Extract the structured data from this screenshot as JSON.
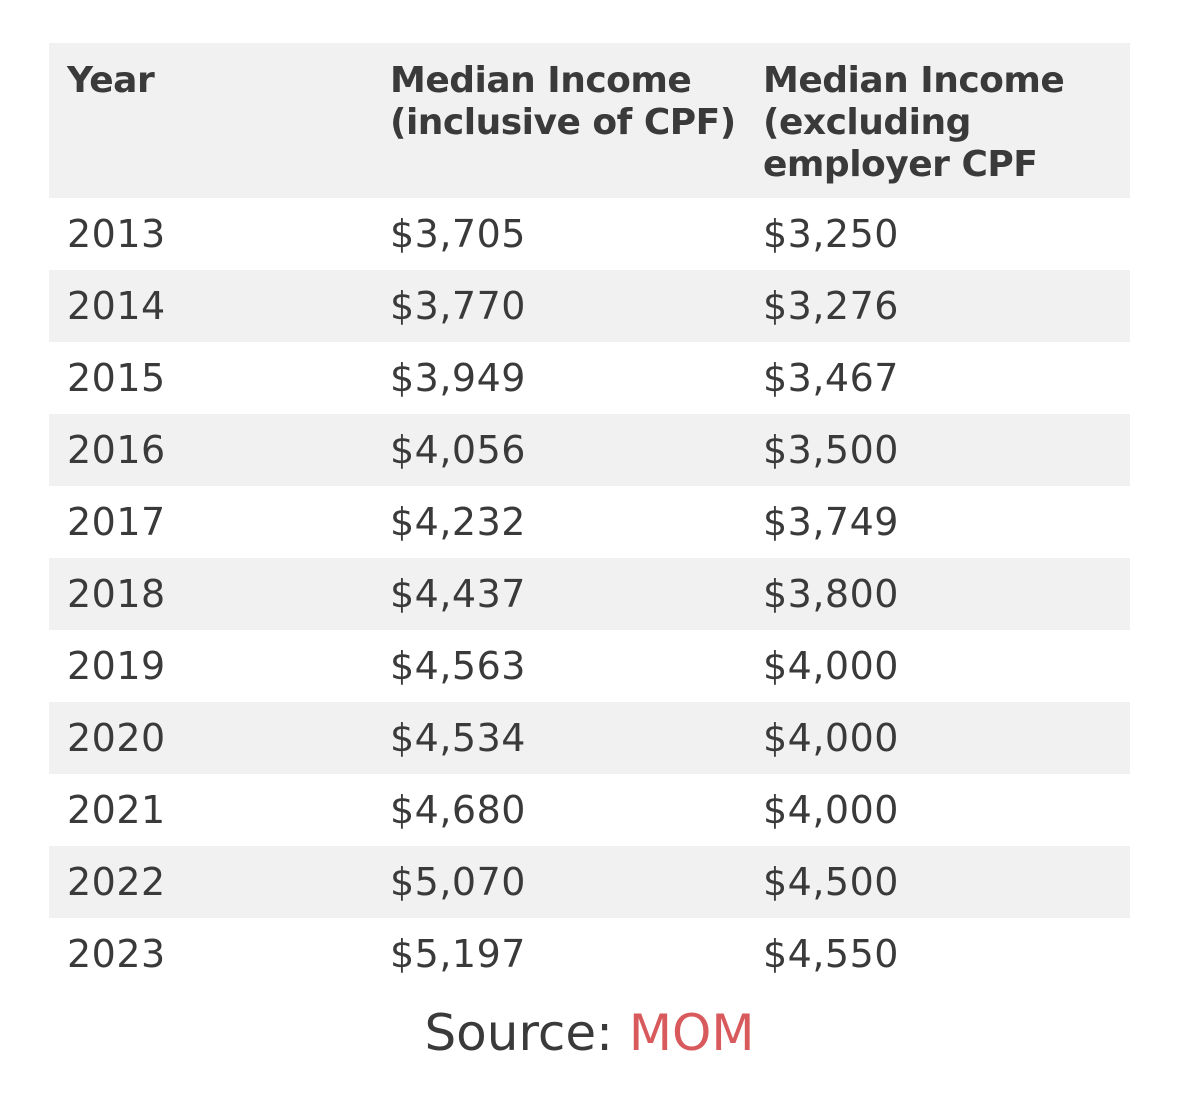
{
  "table": {
    "headers": [
      "Year",
      "Median Income (inclusive of CPF)",
      "Median Income (excluding employer CPF"
    ],
    "rows": [
      [
        "2013",
        "$3,705",
        "$3,250"
      ],
      [
        "2014",
        "$3,770",
        "$3,276"
      ],
      [
        "2015",
        "$3,949",
        "$3,467"
      ],
      [
        "2016",
        "$4,056",
        "$3,500"
      ],
      [
        "2017",
        "$4,232",
        "$3,749"
      ],
      [
        "2018",
        "$4,437",
        "$3,800"
      ],
      [
        "2019",
        "$4,563",
        "$4,000"
      ],
      [
        "2020",
        "$4,534",
        "$4,000"
      ],
      [
        "2021",
        "$4,680",
        "$4,000"
      ],
      [
        "2022",
        "$5,070",
        "$4,500"
      ],
      [
        "2023",
        "$5,197",
        "$4,550"
      ]
    ]
  },
  "source": {
    "label": "Source: ",
    "link_text": "MOM",
    "link_color": "#d85a5c"
  },
  "colors": {
    "stripe": "#f1f1f1",
    "text": "#3a3a3a"
  }
}
